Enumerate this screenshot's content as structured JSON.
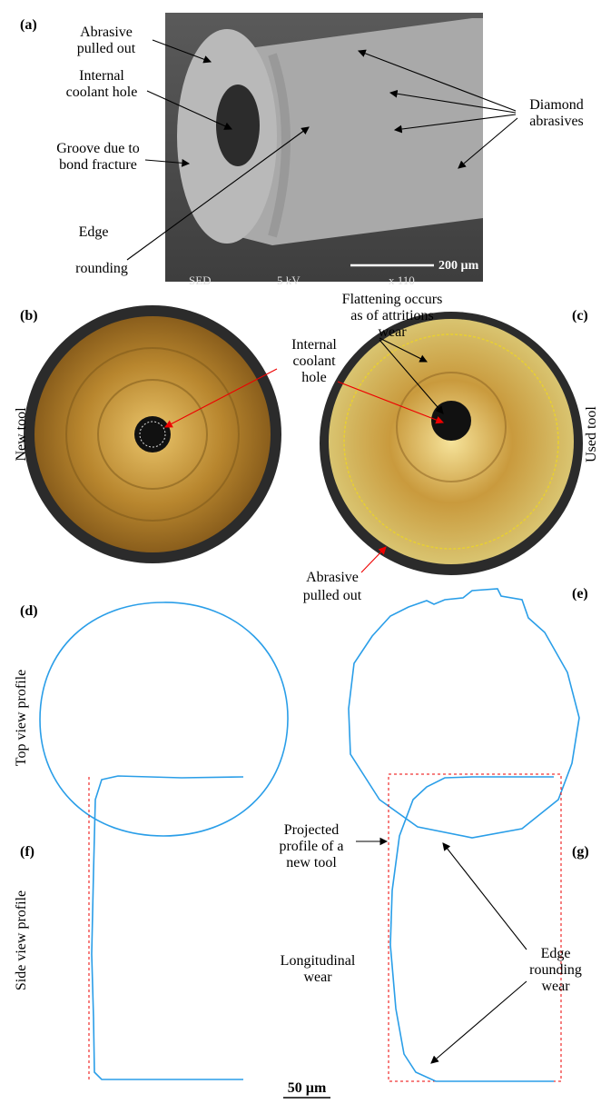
{
  "panel_a": {
    "label": "(a)",
    "abrasive_pulled_out": [
      "Abrasive",
      "pulled out"
    ],
    "internal_coolant_hole": [
      "Internal",
      "coolant hole"
    ],
    "groove": [
      "Groove due to",
      "bond fracture"
    ],
    "edge_rounding": [
      "Edge",
      "rounding"
    ],
    "diamond_abrasives": [
      "Diamond",
      "abrasives"
    ],
    "scale_bar": "200 µm",
    "sem_info": [
      "SED",
      "5 kV",
      "x 110"
    ]
  },
  "panel_b": {
    "label": "(b)",
    "side_label": "New tool"
  },
  "panel_c": {
    "label": "(c)",
    "side_label": "Used tool",
    "flattening": [
      "Flattening occurs",
      "as of attritions",
      "wear"
    ],
    "internal_coolant_hole": [
      "Internal",
      "coolant",
      "hole"
    ],
    "abrasive_pulled_out": [
      "Abrasive",
      "pulled out"
    ]
  },
  "panel_d": {
    "label": "(d)",
    "side_label": "Top view profile"
  },
  "panel_e": {
    "label": "(e)"
  },
  "panel_f": {
    "label": "(f)",
    "side_label": "Side view profile"
  },
  "panel_g": {
    "label": "(g)",
    "projected_profile": [
      "Projected",
      "profile of a",
      "new tool"
    ],
    "longitudinal_wear": [
      "Longitudinal",
      "wear"
    ],
    "edge_rounding_wear": [
      "Edge",
      "rounding",
      "wear"
    ]
  },
  "scale_bar": "50 µm"
}
